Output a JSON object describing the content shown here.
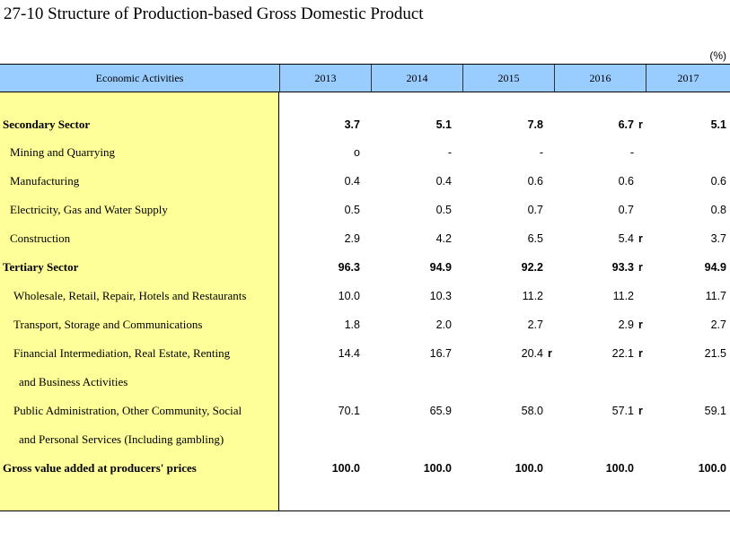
{
  "title": "27-10  Structure of Production-based Gross Domestic Product",
  "unit": "(%)",
  "header": {
    "activity_label": "Economic Activities",
    "years": [
      "2013",
      "2014",
      "2015",
      "2016",
      "2017"
    ]
  },
  "rows": [
    {
      "label": "Secondary Sector",
      "values": [
        "3.7",
        "5.1",
        "7.8",
        "6.7",
        "5.1"
      ],
      "flags": [
        "",
        "",
        "",
        "r",
        ""
      ]
    },
    {
      "label": "Mining and Quarrying",
      "values": [
        "o",
        "-",
        "-",
        "-",
        ""
      ],
      "flags": [
        "",
        "",
        "",
        "",
        ""
      ]
    },
    {
      "label": "Manufacturing",
      "values": [
        "0.4",
        "0.4",
        "0.6",
        "0.6",
        "0.6"
      ],
      "flags": [
        "",
        "",
        "",
        "",
        ""
      ]
    },
    {
      "label": "Electricity, Gas and Water Supply",
      "values": [
        "0.5",
        "0.5",
        "0.7",
        "0.7",
        "0.8"
      ],
      "flags": [
        "",
        "",
        "",
        "",
        ""
      ]
    },
    {
      "label": "Construction",
      "values": [
        "2.9",
        "4.2",
        "6.5",
        "5.4",
        "3.7"
      ],
      "flags": [
        "",
        "",
        "",
        "r",
        ""
      ]
    },
    {
      "label": "Tertiary Sector",
      "values": [
        "96.3",
        "94.9",
        "92.2",
        "93.3",
        "94.9"
      ],
      "flags": [
        "",
        "",
        "",
        "r",
        ""
      ]
    },
    {
      "label": "Wholesale, Retail, Repair, Hotels and Restaurants",
      "values": [
        "10.0",
        "10.3",
        "11.2",
        "11.2",
        "11.7"
      ],
      "flags": [
        "",
        "",
        "",
        "",
        ""
      ]
    },
    {
      "label": "Transport, Storage and Communications",
      "values": [
        "1.8",
        "2.0",
        "2.7",
        "2.9",
        "2.7"
      ],
      "flags": [
        "",
        "",
        "",
        "r",
        ""
      ]
    },
    {
      "label": "Financial Intermediation, Real Estate, Renting",
      "values": [
        "14.4",
        "16.7",
        "20.4",
        "22.1",
        "21.5"
      ],
      "flags": [
        "",
        "",
        "r",
        "r",
        ""
      ]
    },
    {
      "label": "and Business Activities",
      "values": [
        "",
        "",
        "",
        "",
        ""
      ],
      "flags": [
        "",
        "",
        "",
        "",
        ""
      ]
    },
    {
      "label": "Public Administration, Other Community, Social",
      "values": [
        "70.1",
        "65.9",
        "58.0",
        "57.1",
        "59.1"
      ],
      "flags": [
        "",
        "",
        "",
        "r",
        ""
      ]
    },
    {
      "label": "and Personal Services (Including gambling)",
      "values": [
        "",
        "",
        "",
        "",
        ""
      ],
      "flags": [
        "",
        "",
        "",
        "",
        ""
      ]
    },
    {
      "label": "Gross value added at producers' prices",
      "values": [
        "100.0",
        "100.0",
        "100.0",
        "100.0",
        "100.0"
      ],
      "flags": [
        "",
        "",
        "",
        "",
        ""
      ]
    }
  ]
}
